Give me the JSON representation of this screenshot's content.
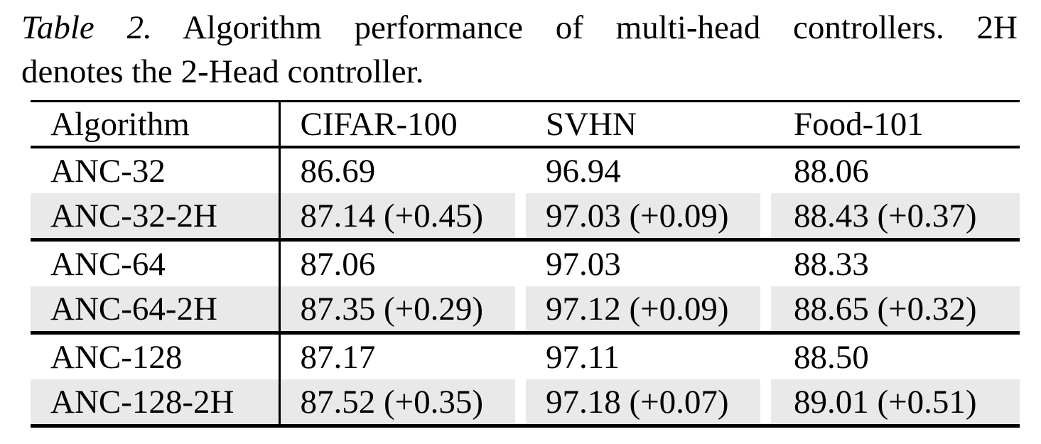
{
  "caption": {
    "label": "Table 2.",
    "line1_rest": "Algorithm performance of multi-head controllers.  2H",
    "line2": "denotes the 2-Head controller."
  },
  "table": {
    "columns": [
      "Algorithm",
      "CIFAR-100",
      "SVHN",
      "Food-101"
    ],
    "rows": [
      {
        "algorithm": "ANC-32",
        "cifar100": "86.69",
        "svhn": "96.94",
        "food101": "88.06"
      },
      {
        "algorithm": "ANC-32-2H",
        "cifar100": "87.14 (+0.45)",
        "svhn": "97.03 (+0.09)",
        "food101": "88.43 (+0.37)"
      },
      {
        "algorithm": "ANC-64",
        "cifar100": "87.06",
        "svhn": "97.03",
        "food101": "88.33"
      },
      {
        "algorithm": "ANC-64-2H",
        "cifar100": "87.35 (+0.29)",
        "svhn": "97.12 (+0.09)",
        "food101": "88.65 (+0.32)"
      },
      {
        "algorithm": "ANC-128",
        "cifar100": "87.17",
        "svhn": "97.11",
        "food101": "88.50"
      },
      {
        "algorithm": "ANC-128-2H",
        "cifar100": "87.52 (+0.35)",
        "svhn": "97.18 (+0.07)",
        "food101": "89.01 (+0.51)"
      }
    ],
    "highlight_color": "#e9e9e9",
    "rule_color": "#000000",
    "text_color": "#000000"
  }
}
